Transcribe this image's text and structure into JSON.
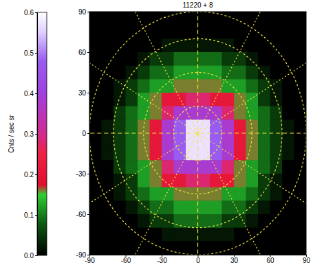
{
  "chart_data": {
    "type": "heatmap",
    "title": "11220 + 8",
    "x": [
      -85,
      -75,
      -65,
      -55,
      -45,
      -35,
      -25,
      -15,
      -5,
      5,
      15,
      25,
      35,
      45,
      55,
      65,
      75,
      85
    ],
    "y": [
      85,
      75,
      65,
      55,
      45,
      35,
      25,
      15,
      5,
      -5,
      -15,
      -25,
      -35,
      -45,
      -55,
      -65,
      -75,
      -85
    ],
    "z": [
      [
        0,
        0,
        0,
        0,
        0,
        0,
        0,
        0,
        0,
        0,
        0,
        0,
        0,
        0,
        0,
        0,
        0,
        0
      ],
      [
        0,
        0,
        0,
        0,
        0,
        0,
        0,
        0,
        0,
        0,
        0,
        0,
        0,
        0,
        0,
        0,
        0,
        0
      ],
      [
        0,
        0,
        0,
        0,
        0,
        0,
        0.02,
        0.02,
        0.02,
        0.02,
        0.02,
        0.02,
        0,
        0,
        0,
        0,
        0,
        0
      ],
      [
        0,
        0,
        0,
        0,
        0.02,
        0.05,
        0.05,
        0.09,
        0.09,
        0.09,
        0.09,
        0.05,
        0.05,
        0.02,
        0,
        0,
        0,
        0
      ],
      [
        0,
        0,
        0,
        0.02,
        0.05,
        0.09,
        0.09,
        0.12,
        0.12,
        0.12,
        0.12,
        0.09,
        0.09,
        0.05,
        0.02,
        0,
        0,
        0
      ],
      [
        0,
        0,
        0.02,
        0.05,
        0.09,
        0.12,
        0.12,
        0.16,
        0.16,
        0.16,
        0.16,
        0.12,
        0.12,
        0.09,
        0.05,
        0.02,
        0,
        0
      ],
      [
        0,
        0,
        0.02,
        0.05,
        0.12,
        0.16,
        0.21,
        0.21,
        0.28,
        0.28,
        0.21,
        0.21,
        0.16,
        0.12,
        0.05,
        0.02,
        0,
        0
      ],
      [
        0,
        0,
        0.05,
        0.09,
        0.12,
        0.16,
        0.28,
        0.38,
        0.38,
        0.38,
        0.38,
        0.28,
        0.16,
        0.12,
        0.09,
        0.05,
        0,
        0
      ],
      [
        0,
        0.02,
        0.05,
        0.09,
        0.16,
        0.21,
        0.38,
        0.48,
        0.57,
        0.57,
        0.48,
        0.38,
        0.21,
        0.16,
        0.09,
        0.05,
        0.02,
        0
      ],
      [
        0,
        0.02,
        0.05,
        0.09,
        0.16,
        0.21,
        0.38,
        0.48,
        0.57,
        0.57,
        0.48,
        0.38,
        0.21,
        0.16,
        0.09,
        0.05,
        0.02,
        0
      ],
      [
        0,
        0.02,
        0.05,
        0.09,
        0.16,
        0.21,
        0.38,
        0.48,
        0.57,
        0.57,
        0.48,
        0.38,
        0.21,
        0.16,
        0.09,
        0.05,
        0.02,
        0
      ],
      [
        0,
        0,
        0.05,
        0.09,
        0.12,
        0.16,
        0.28,
        0.38,
        0.38,
        0.38,
        0.38,
        0.28,
        0.16,
        0.12,
        0.09,
        0.05,
        0,
        0
      ],
      [
        0,
        0,
        0.02,
        0.05,
        0.12,
        0.16,
        0.21,
        0.21,
        0.28,
        0.28,
        0.21,
        0.21,
        0.16,
        0.12,
        0.05,
        0.02,
        0,
        0
      ],
      [
        0,
        0,
        0.02,
        0.05,
        0.09,
        0.12,
        0.12,
        0.16,
        0.16,
        0.16,
        0.16,
        0.12,
        0.12,
        0.09,
        0.05,
        0.02,
        0,
        0
      ],
      [
        0,
        0,
        0,
        0.02,
        0.05,
        0.09,
        0.09,
        0.12,
        0.12,
        0.12,
        0.12,
        0.09,
        0.09,
        0.05,
        0.02,
        0,
        0,
        0
      ],
      [
        0,
        0,
        0,
        0,
        0.02,
        0.05,
        0.05,
        0.09,
        0.09,
        0.09,
        0.09,
        0.05,
        0.05,
        0.02,
        0,
        0,
        0,
        0
      ],
      [
        0,
        0,
        0,
        0,
        0,
        0,
        0.02,
        0.02,
        0.02,
        0.02,
        0.02,
        0.02,
        0,
        0,
        0,
        0,
        0,
        0
      ],
      [
        0,
        0,
        0,
        0,
        0,
        0,
        0,
        0,
        0,
        0,
        0,
        0,
        0,
        0,
        0,
        0,
        0,
        0
      ]
    ],
    "xlim": [
      -90,
      90
    ],
    "ylim": [
      -90,
      90
    ],
    "xticks": [
      -90,
      -60,
      -30,
      0,
      30,
      60,
      90
    ],
    "yticks": [
      -90,
      -60,
      -30,
      0,
      30,
      60,
      90
    ],
    "grid": true,
    "grid_rings": [
      20,
      45,
      70,
      90
    ],
    "grid_spokes": [
      0,
      30,
      60,
      90,
      120,
      150
    ],
    "colorbar": {
      "label": "Cnts / sec sr",
      "range": [
        0,
        0.6
      ],
      "ticks": [
        {
          "value": 0,
          "label": "0.0"
        },
        0.1,
        0.2,
        0.3,
        0.4,
        0.5,
        0.6
      ]
    }
  }
}
